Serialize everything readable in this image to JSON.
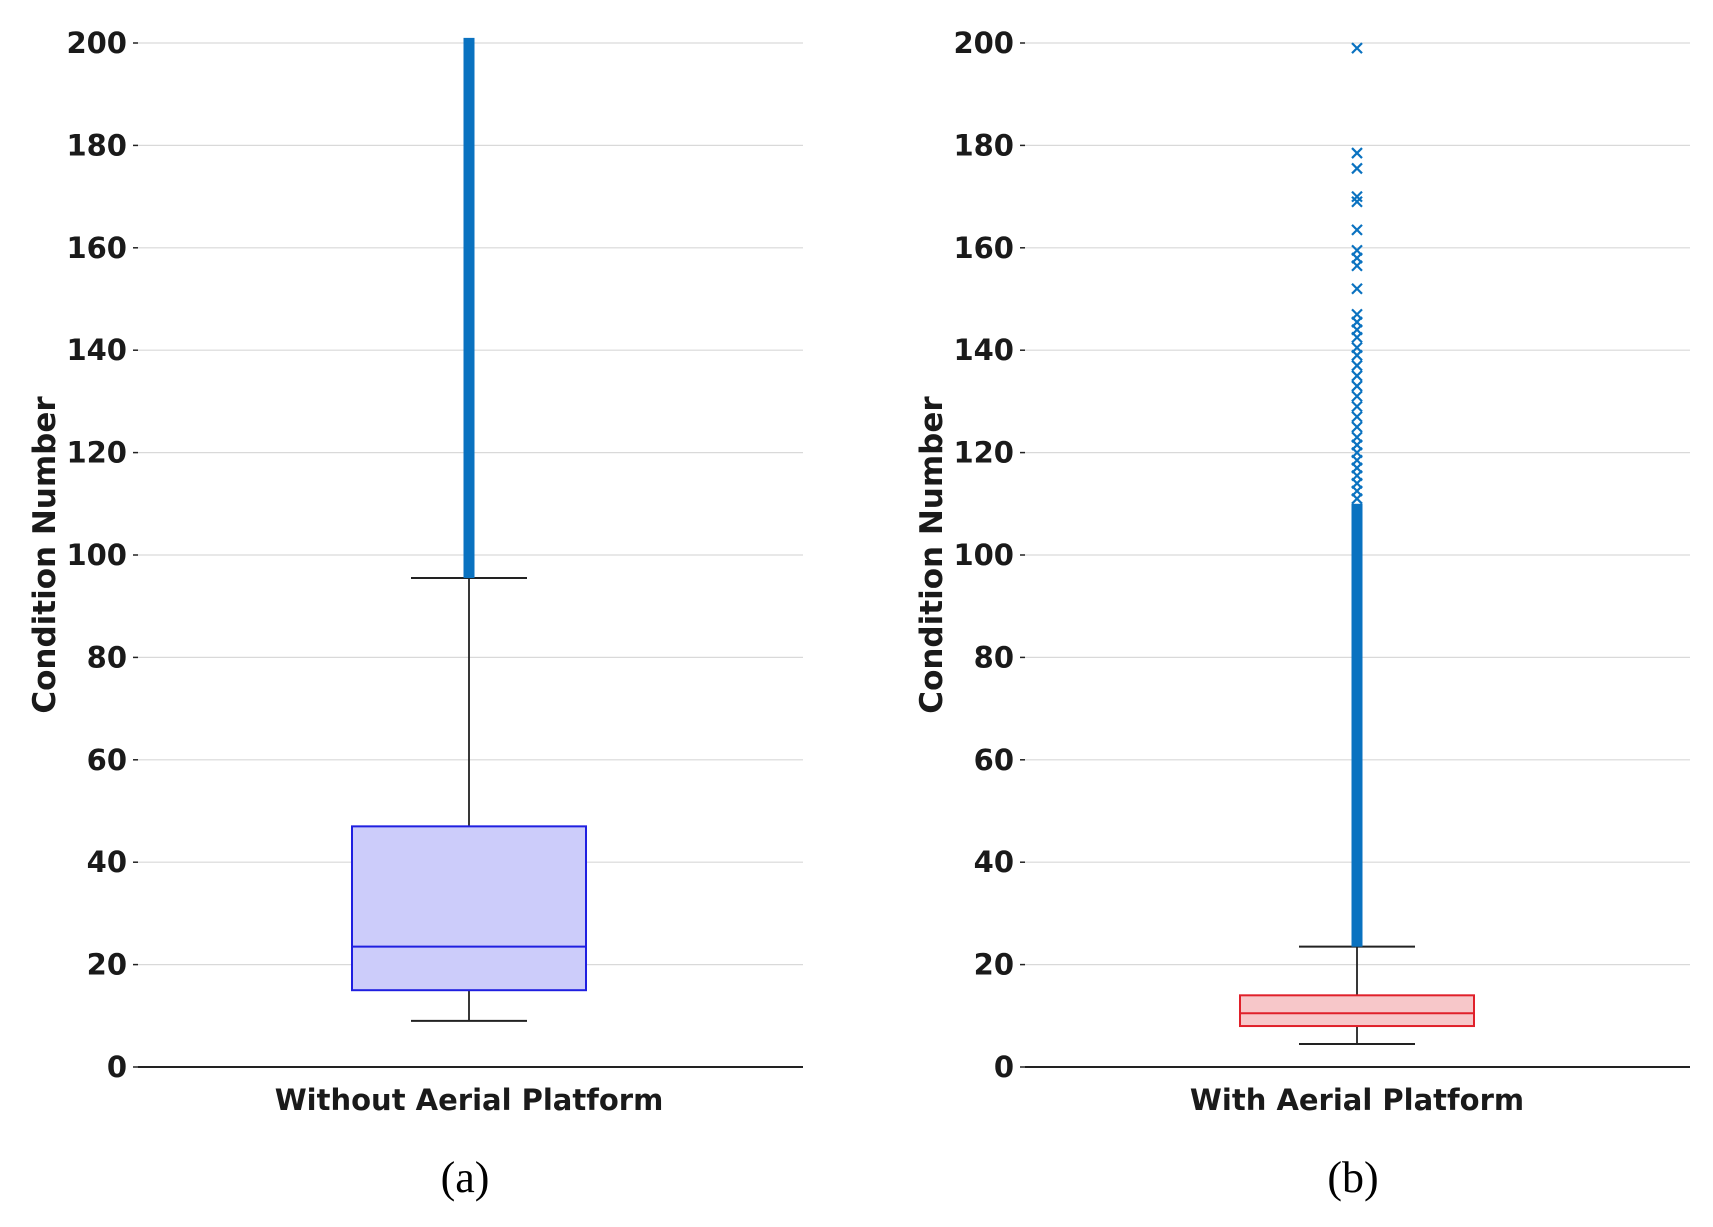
{
  "chart_data": [
    {
      "type": "box",
      "panel_label": "(a)",
      "ylabel": "Condition Number",
      "category": "Without Aerial Platform",
      "ylim": [
        0,
        200
      ],
      "yticks": [
        0,
        20,
        40,
        60,
        80,
        100,
        120,
        140,
        160,
        180,
        200
      ],
      "grid": true,
      "box": {
        "whisker_low": 9,
        "q1": 15,
        "median": 23.5,
        "q3": 47,
        "whisker_high": 95.5
      },
      "outliers": {
        "dense_from": 95.5,
        "dense_to": 201,
        "sparse": []
      },
      "colors": {
        "box_fill": "#ccccfa",
        "box_edge": "#1f1fe0",
        "whisker": "#222222",
        "outlier": "#0a72c0"
      }
    },
    {
      "type": "box",
      "panel_label": "(b)",
      "ylabel": "Condition Number",
      "category": "With Aerial Platform",
      "ylim": [
        0,
        200
      ],
      "yticks": [
        0,
        20,
        40,
        60,
        80,
        100,
        120,
        140,
        160,
        180,
        200
      ],
      "grid": true,
      "box": {
        "whisker_low": 4.5,
        "q1": 8,
        "median": 10.5,
        "q3": 14,
        "whisker_high": 23.5
      },
      "outliers": {
        "dense_from": 23.5,
        "dense_to": 110,
        "sparse": [
          111,
          112.5,
          114,
          115.5,
          117,
          118.5,
          120,
          121.5,
          123,
          125,
          127,
          129,
          131,
          133,
          135,
          137,
          139,
          140.5,
          142.5,
          144,
          145.5,
          147,
          152,
          156.5,
          158,
          159.5,
          163.5,
          169,
          170,
          175.5,
          178.5,
          199
        ]
      },
      "colors": {
        "box_fill": "#f7c7c9",
        "box_edge": "#e0202a",
        "whisker": "#222222",
        "outlier": "#0a72c0"
      }
    }
  ]
}
